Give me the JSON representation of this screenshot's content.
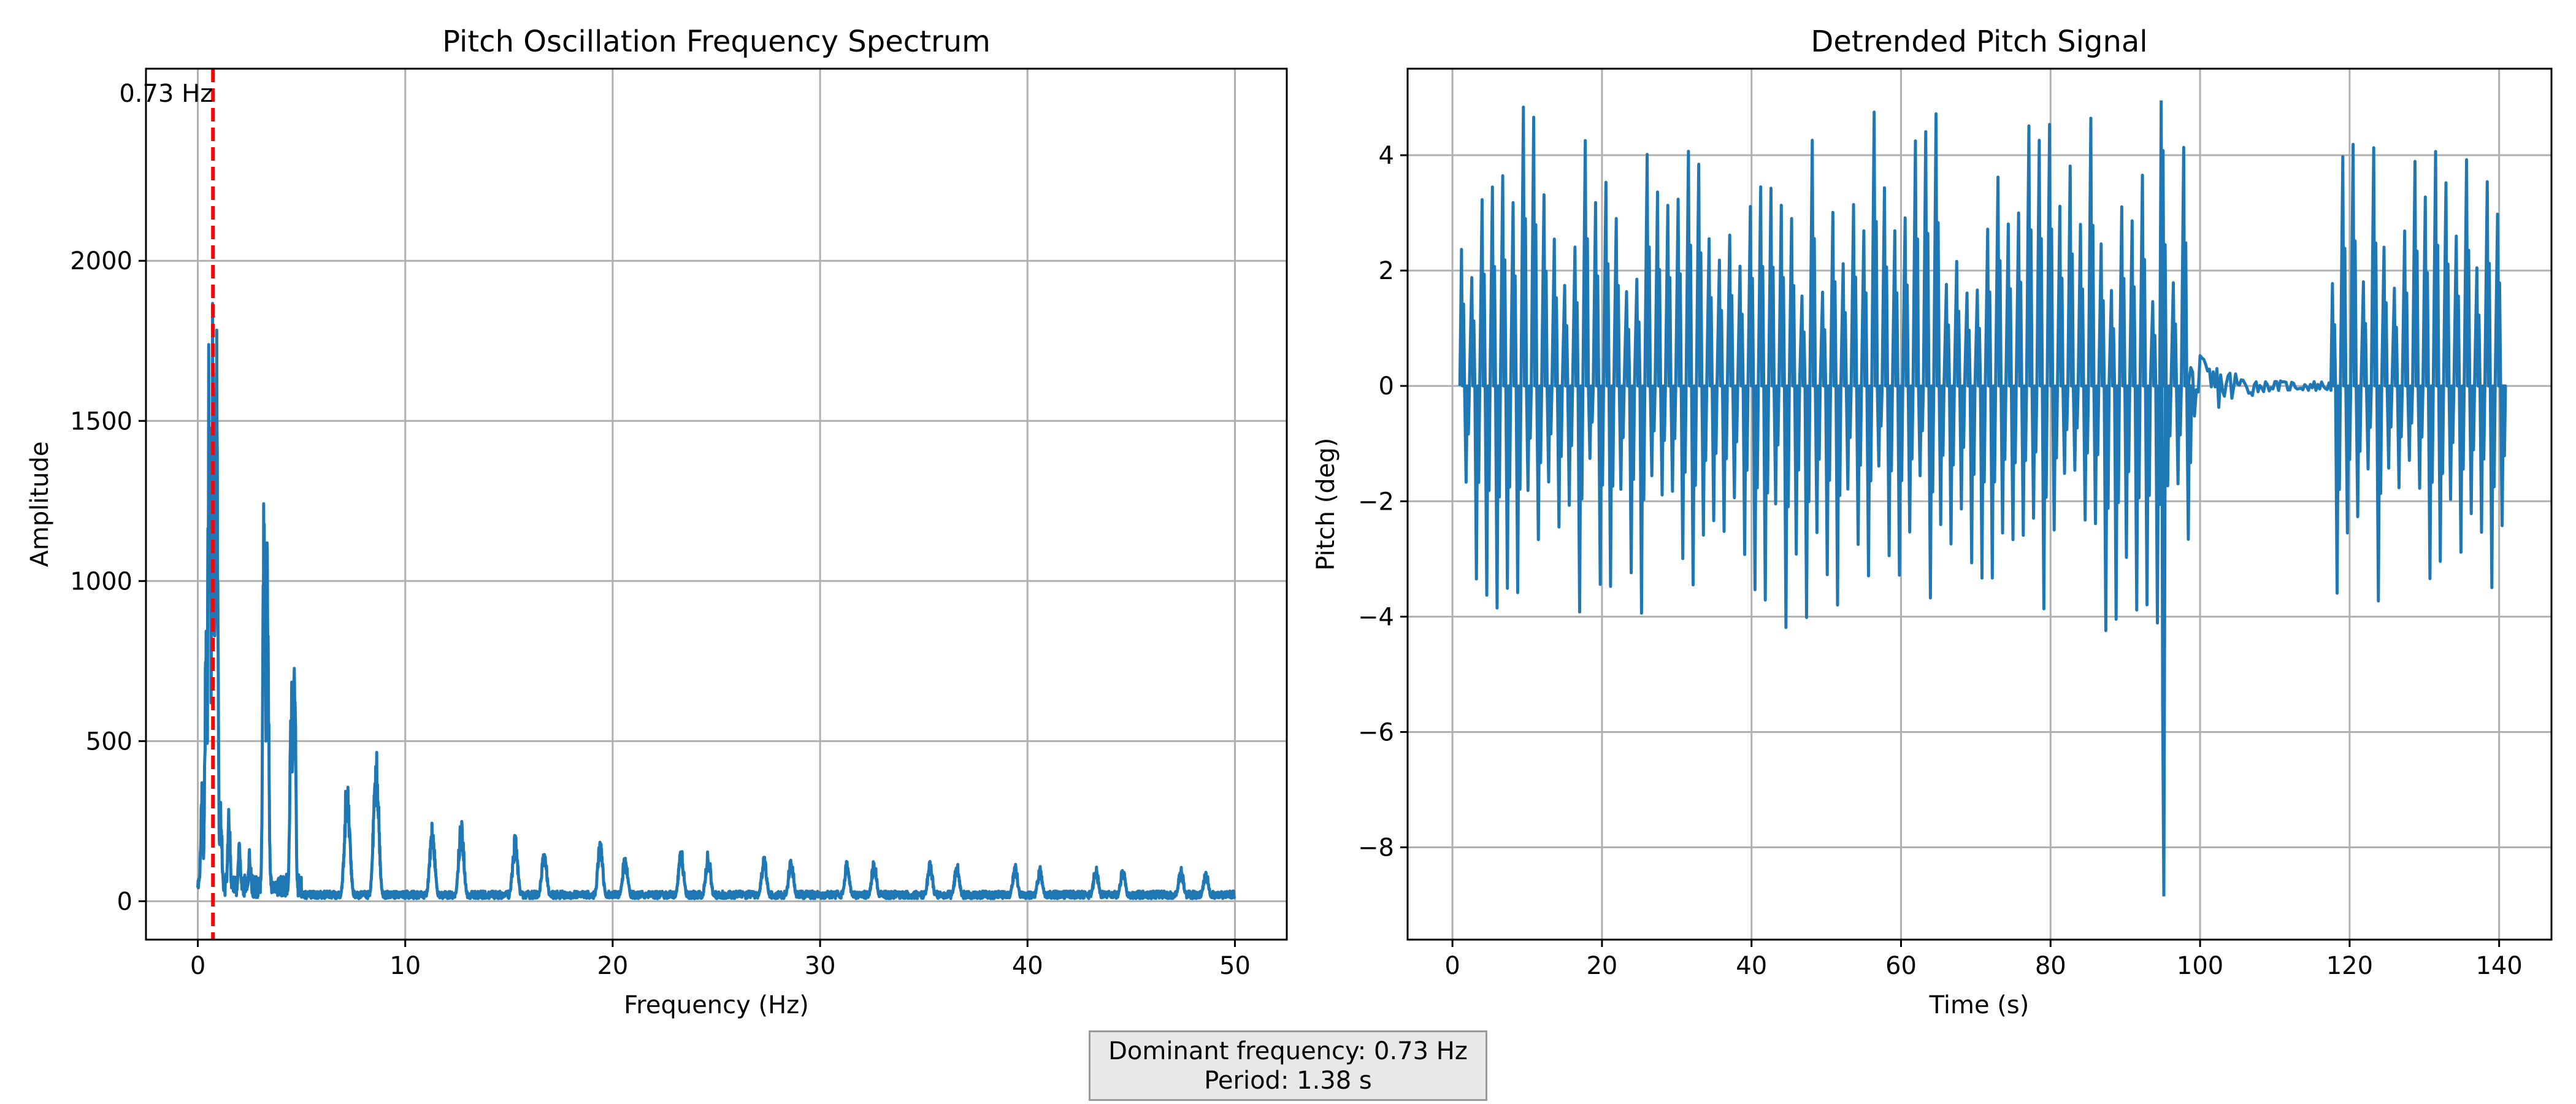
{
  "summary": {
    "dominant_line": "Dominant frequency: 0.73 Hz",
    "period_line": "Period: 1.38 s"
  },
  "chart_data": [
    {
      "type": "line",
      "title": "Pitch Oscillation Frequency Spectrum",
      "xlabel": "Frequency (Hz)",
      "ylabel": "Amplitude",
      "xlim": [
        -2.5,
        52.5
      ],
      "ylim": [
        -120,
        2600
      ],
      "xticks": [
        0,
        10,
        20,
        30,
        40,
        50
      ],
      "yticks": [
        0,
        500,
        1000,
        1500,
        2000
      ],
      "grid": true,
      "line_color": "#1f77b4",
      "marker": {
        "x": 0.73,
        "label": "0.73 Hz",
        "color": "#ff0000",
        "style": "dashed"
      },
      "peaks": [
        {
          "f": 0.2,
          "a": 380
        },
        {
          "f": 0.4,
          "a": 870
        },
        {
          "f": 0.55,
          "a": 1950
        },
        {
          "f": 0.73,
          "a": 1980
        },
        {
          "f": 0.9,
          "a": 1900
        },
        {
          "f": 1.1,
          "a": 330
        },
        {
          "f": 1.5,
          "a": 300
        },
        {
          "f": 2.0,
          "a": 190
        },
        {
          "f": 2.5,
          "a": 170
        },
        {
          "f": 3.2,
          "a": 1380
        },
        {
          "f": 3.35,
          "a": 1150
        },
        {
          "f": 4.5,
          "a": 780
        },
        {
          "f": 4.65,
          "a": 920
        },
        {
          "f": 7.2,
          "a": 410
        },
        {
          "f": 8.6,
          "a": 480
        },
        {
          "f": 11.3,
          "a": 250
        },
        {
          "f": 12.7,
          "a": 260
        },
        {
          "f": 15.3,
          "a": 210
        },
        {
          "f": 16.7,
          "a": 170
        },
        {
          "f": 19.4,
          "a": 190
        },
        {
          "f": 20.6,
          "a": 150
        },
        {
          "f": 23.3,
          "a": 170
        },
        {
          "f": 24.6,
          "a": 160
        },
        {
          "f": 27.3,
          "a": 150
        },
        {
          "f": 28.6,
          "a": 140
        },
        {
          "f": 31.3,
          "a": 130
        },
        {
          "f": 32.6,
          "a": 130
        },
        {
          "f": 35.3,
          "a": 125
        },
        {
          "f": 36.6,
          "a": 120
        },
        {
          "f": 39.4,
          "a": 120
        },
        {
          "f": 40.6,
          "a": 110
        },
        {
          "f": 43.3,
          "a": 110
        },
        {
          "f": 44.6,
          "a": 105
        },
        {
          "f": 47.4,
          "a": 110
        },
        {
          "f": 48.6,
          "a": 100
        }
      ],
      "baseline_amplitude": 20
    },
    {
      "type": "line",
      "title": "Detrended Pitch Signal",
      "xlabel": "Time (s)",
      "ylabel": "Pitch (deg)",
      "xlim": [
        -6,
        147
      ],
      "ylim": [
        -9.6,
        5.5
      ],
      "xticks": [
        0,
        20,
        40,
        60,
        80,
        100,
        120,
        140
      ],
      "yticks": [
        -8,
        -6,
        -4,
        -2,
        0,
        2,
        4
      ],
      "grid": true,
      "line_color": "#1f77b4",
      "segments": [
        {
          "t_start": 1.0,
          "t_end": 98.5,
          "cycle_s": 1.38,
          "max": 4.95,
          "min": -4.3,
          "type": "oscillation"
        },
        {
          "t_start": 98.5,
          "t_end": 117.5,
          "max": 0.6,
          "min": -0.5,
          "type": "small"
        },
        {
          "t_start": 117.5,
          "t_end": 140.0,
          "cycle_s": 1.38,
          "max": 4.2,
          "min": -3.8,
          "type": "oscillation"
        }
      ],
      "spike": {
        "t": 95.0,
        "min": -8.85,
        "max": 4.95
      }
    }
  ]
}
